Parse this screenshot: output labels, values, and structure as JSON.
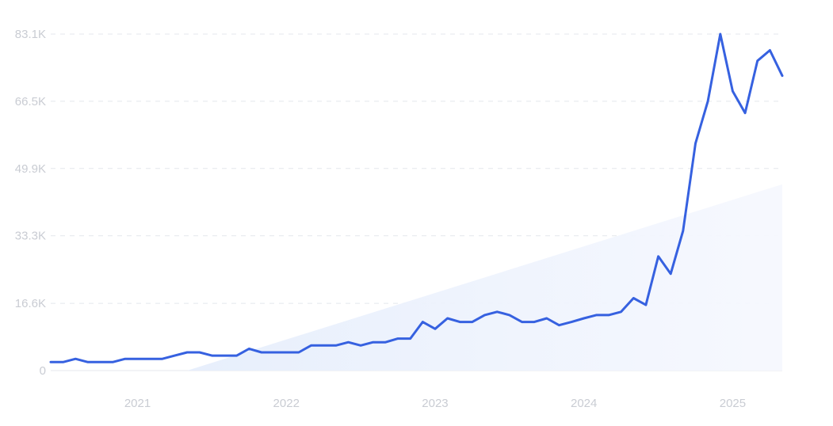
{
  "chart_data": {
    "type": "line",
    "title": "",
    "xlabel": "",
    "ylabel": "",
    "ylim": [
      0,
      83100
    ],
    "y_ticks": [
      {
        "value": 0,
        "label": "0"
      },
      {
        "value": 16600,
        "label": "16.6K"
      },
      {
        "value": 33300,
        "label": "33.3K"
      },
      {
        "value": 49900,
        "label": "49.9K"
      },
      {
        "value": 66500,
        "label": "66.5K"
      },
      {
        "value": 83100,
        "label": "83.1K"
      }
    ],
    "xlim": [
      "2020-06",
      "2025-05"
    ],
    "x_ticks": [
      {
        "value": "2021-01",
        "label": "2021"
      },
      {
        "value": "2022-01",
        "label": "2022"
      },
      {
        "value": "2023-01",
        "label": "2023"
      },
      {
        "value": "2024-01",
        "label": "2024"
      },
      {
        "value": "2025-01",
        "label": "2025"
      }
    ],
    "grid": true,
    "legend": "none",
    "series": [
      {
        "color": "#3661e0",
        "x": [
          "2020-06",
          "2020-07",
          "2020-08",
          "2020-09",
          "2020-10",
          "2020-11",
          "2020-12",
          "2021-01",
          "2021-02",
          "2021-03",
          "2021-04",
          "2021-05",
          "2021-06",
          "2021-07",
          "2021-08",
          "2021-09",
          "2021-10",
          "2021-11",
          "2021-12",
          "2022-01",
          "2022-02",
          "2022-03",
          "2022-04",
          "2022-05",
          "2022-06",
          "2022-07",
          "2022-08",
          "2022-09",
          "2022-10",
          "2022-11",
          "2022-12",
          "2023-01",
          "2023-02",
          "2023-03",
          "2023-04",
          "2023-05",
          "2023-06",
          "2023-07",
          "2023-08",
          "2023-09",
          "2023-10",
          "2023-11",
          "2023-12",
          "2024-01",
          "2024-02",
          "2024-03",
          "2024-04",
          "2024-05",
          "2024-06",
          "2024-07",
          "2024-08",
          "2024-09",
          "2024-10",
          "2024-11",
          "2024-12",
          "2025-01",
          "2025-02",
          "2025-03",
          "2025-04",
          "2025-05"
        ],
        "values": [
          2100,
          2100,
          2900,
          2100,
          2100,
          2100,
          2900,
          2900,
          2900,
          2900,
          3700,
          4500,
          4500,
          3700,
          3700,
          3700,
          5400,
          4500,
          4500,
          4500,
          4500,
          6200,
          6200,
          6200,
          7000,
          6200,
          7000,
          7000,
          7900,
          7900,
          12000,
          10300,
          12900,
          12000,
          12000,
          13700,
          14500,
          13700,
          12000,
          12000,
          12900,
          11200,
          12000,
          12900,
          13700,
          13700,
          14500,
          17900,
          16200,
          28200,
          23900,
          34500,
          56100,
          66500,
          83100,
          69000,
          63600,
          76500,
          79100,
          72800
        ]
      }
    ],
    "trend_area": {
      "color": "#dde8fb",
      "x": [
        "2021-05",
        "2025-05"
      ],
      "values": [
        0,
        46000
      ]
    }
  }
}
